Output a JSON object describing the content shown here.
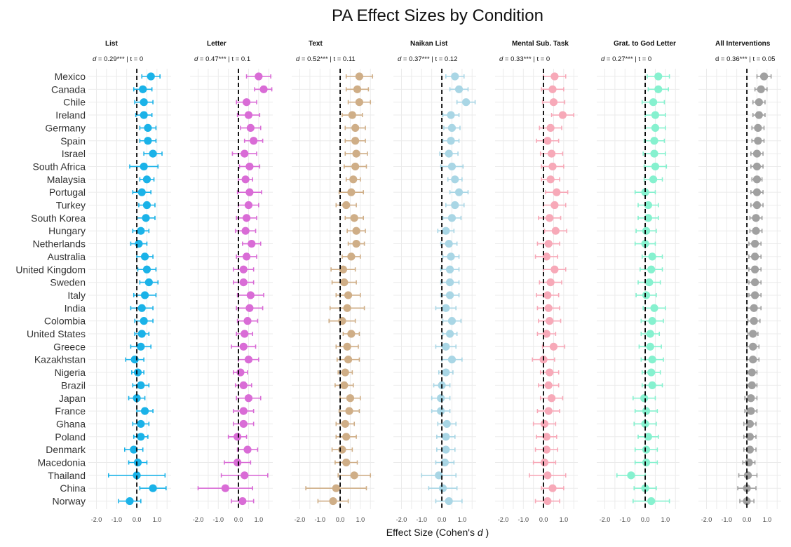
{
  "chart_data": {
    "type": "scatter",
    "title": "PA Effect Sizes by Condition",
    "xlabel_prefix": "Effect Size (Cohen's ",
    "xlabel_var": "d",
    "xlabel_suffix": " )",
    "xlim": [
      -2.4,
      1.7
    ],
    "xticks": [
      "-2.0",
      "-1.0",
      "0.0",
      "1.0"
    ],
    "xtick_values": [
      -2,
      -1,
      0,
      1
    ],
    "reference_line": 0,
    "countries": [
      "Mexico",
      "Canada",
      "Chile",
      "Ireland",
      "Germany",
      "Spain",
      "Israel",
      "South Africa",
      "Malaysia",
      "Portugal",
      "Turkey",
      "South Korea",
      "Hungary",
      "Netherlands",
      "Australia",
      "United Kingdom",
      "Sweden",
      "Italy",
      "India",
      "Colombia",
      "United States",
      "Greece",
      "Kazakhstan",
      "Nigeria",
      "Brazil",
      "Japan",
      "France",
      "Ghana",
      "Poland",
      "Denmark",
      "Macedonia",
      "Thailand",
      "China",
      "Norway"
    ],
    "panels": [
      {
        "name": "List",
        "stat_var": "d",
        "stat_rest": " = 0.29*** | t = 0",
        "color": "#1ab2e8",
        "values": [
          0.7,
          0.3,
          0.35,
          0.35,
          0.55,
          0.55,
          0.8,
          0.35,
          0.5,
          0.25,
          0.5,
          0.45,
          0.2,
          0.1,
          0.4,
          0.5,
          0.6,
          0.4,
          0.25,
          0.35,
          0.25,
          0.2,
          -0.1,
          0.05,
          0.2,
          0.0,
          0.4,
          0.2,
          0.2,
          -0.15,
          0.05,
          0.0,
          0.8,
          -0.35
        ],
        "err": [
          0.45,
          0.45,
          0.45,
          0.4,
          0.4,
          0.4,
          0.45,
          0.7,
          0.35,
          0.45,
          0.4,
          0.45,
          0.4,
          0.4,
          0.4,
          0.45,
          0.45,
          0.55,
          0.55,
          0.45,
          0.35,
          0.5,
          0.45,
          0.3,
          0.4,
          0.4,
          0.4,
          0.4,
          0.35,
          0.45,
          0.45,
          1.4,
          0.65,
          0.55
        ]
      },
      {
        "name": "Letter",
        "stat_var": "d",
        "stat_rest": " = 0.47*** | t = 0.1",
        "color": "#d96cd6",
        "values": [
          1.0,
          1.25,
          0.4,
          0.5,
          0.6,
          0.75,
          0.3,
          0.55,
          0.35,
          0.55,
          0.5,
          0.4,
          0.35,
          0.65,
          0.4,
          0.25,
          0.25,
          0.6,
          0.55,
          0.45,
          0.3,
          0.25,
          0.5,
          0.1,
          0.25,
          0.5,
          0.25,
          0.25,
          -0.05,
          0.45,
          -0.05,
          0.3,
          -0.65,
          0.2
        ],
        "err": [
          0.6,
          0.45,
          0.5,
          0.55,
          0.5,
          0.45,
          0.6,
          0.5,
          0.35,
          0.6,
          0.5,
          0.5,
          0.5,
          0.45,
          0.5,
          0.5,
          0.5,
          0.65,
          0.65,
          0.5,
          0.4,
          0.6,
          0.5,
          0.35,
          0.4,
          0.6,
          0.5,
          0.5,
          0.45,
          0.5,
          0.65,
          1.15,
          1.35,
          0.55
        ]
      },
      {
        "name": "Text",
        "stat_var": "d",
        "stat_rest": " = 0.52*** | t = 0.11",
        "color": "#cfae87",
        "values": [
          0.95,
          0.85,
          0.95,
          0.6,
          0.75,
          0.75,
          0.8,
          0.75,
          0.65,
          0.55,
          0.3,
          0.7,
          0.8,
          0.8,
          0.55,
          0.15,
          0.2,
          0.4,
          0.35,
          0.1,
          0.55,
          0.35,
          0.4,
          0.25,
          0.2,
          0.5,
          0.45,
          0.25,
          0.3,
          0.1,
          0.3,
          0.7,
          -0.2,
          -0.35
        ],
        "err": [
          0.65,
          0.55,
          0.55,
          0.5,
          0.5,
          0.5,
          0.55,
          0.55,
          0.35,
          0.6,
          0.5,
          0.45,
          0.45,
          0.4,
          0.45,
          0.6,
          0.6,
          0.6,
          0.85,
          0.65,
          0.4,
          0.55,
          0.55,
          0.35,
          0.45,
          0.5,
          0.5,
          0.45,
          0.5,
          0.5,
          0.55,
          0.8,
          1.5,
          0.75
        ]
      },
      {
        "name": "Naikan List",
        "stat_var": "d",
        "stat_rest": " = 0.37*** | t = 0.12",
        "color": "#a9d6e5",
        "values": [
          0.65,
          0.85,
          1.2,
          0.45,
          0.5,
          0.45,
          0.35,
          0.5,
          0.65,
          0.85,
          0.65,
          0.5,
          0.2,
          0.35,
          0.45,
          0.4,
          0.4,
          0.4,
          0.2,
          0.5,
          0.4,
          0.2,
          0.5,
          0.2,
          0.0,
          -0.05,
          -0.05,
          0.25,
          0.2,
          0.2,
          0.15,
          -0.15,
          0.05,
          0.35
        ],
        "err": [
          0.45,
          0.45,
          0.45,
          0.4,
          0.4,
          0.4,
          0.45,
          0.55,
          0.35,
          0.45,
          0.45,
          0.45,
          0.4,
          0.4,
          0.4,
          0.45,
          0.45,
          0.45,
          0.5,
          0.45,
          0.35,
          0.5,
          0.5,
          0.35,
          0.4,
          0.45,
          0.45,
          0.45,
          0.45,
          0.45,
          0.45,
          0.85,
          0.7,
          0.65
        ]
      },
      {
        "name": "Mental Sub. Task",
        "stat_var": "d",
        "stat_rest": " = 0.33*** | t = 0",
        "color": "#f7a9b8",
        "values": [
          0.55,
          0.45,
          0.5,
          0.95,
          0.35,
          0.2,
          0.4,
          0.45,
          0.35,
          0.65,
          0.55,
          0.3,
          0.6,
          0.25,
          0.15,
          0.55,
          0.35,
          0.2,
          0.25,
          0.3,
          0.15,
          0.5,
          0.0,
          0.3,
          0.25,
          0.4,
          0.25,
          0.05,
          0.15,
          0.15,
          0.05,
          0.2,
          0.45,
          0.2
        ],
        "err": [
          0.55,
          0.55,
          0.55,
          0.55,
          0.55,
          0.55,
          0.55,
          0.55,
          0.45,
          0.55,
          0.55,
          0.55,
          0.55,
          0.55,
          0.55,
          0.55,
          0.55,
          0.55,
          0.55,
          0.55,
          0.45,
          0.55,
          0.55,
          0.45,
          0.5,
          0.55,
          0.55,
          0.55,
          0.5,
          0.55,
          0.55,
          0.9,
          0.55,
          0.6
        ]
      },
      {
        "name": "Grat. to God Letter",
        "stat_var": "d",
        "stat_rest": " = 0.27*** | t = 0",
        "color": "#86f1cf",
        "values": [
          0.65,
          0.65,
          0.4,
          0.5,
          0.5,
          0.45,
          0.45,
          0.5,
          0.4,
          0.0,
          0.15,
          0.15,
          0.05,
          0.0,
          0.35,
          0.3,
          0.2,
          0.05,
          0.45,
          0.35,
          0.25,
          0.25,
          0.35,
          0.3,
          0.35,
          -0.05,
          0.05,
          0.0,
          0.15,
          0.05,
          0.05,
          -0.7,
          0.0,
          0.3
        ],
        "err": [
          0.55,
          0.5,
          0.55,
          0.5,
          0.5,
          0.5,
          0.55,
          0.55,
          0.45,
          0.5,
          0.5,
          0.5,
          0.5,
          0.5,
          0.5,
          0.55,
          0.55,
          0.5,
          0.55,
          0.55,
          0.45,
          0.55,
          0.55,
          0.45,
          0.5,
          0.55,
          0.55,
          0.55,
          0.5,
          0.55,
          0.55,
          0.7,
          0.55,
          0.9
        ]
      },
      {
        "name": "All Interventions",
        "stat_var": "",
        "stat_rest": "d = 0.36*** | t = 0.05",
        "color": "#a0a0a0",
        "values": [
          0.85,
          0.7,
          0.6,
          0.6,
          0.55,
          0.55,
          0.5,
          0.5,
          0.5,
          0.5,
          0.5,
          0.45,
          0.45,
          0.4,
          0.4,
          0.4,
          0.4,
          0.4,
          0.35,
          0.35,
          0.3,
          0.3,
          0.3,
          0.25,
          0.25,
          0.2,
          0.2,
          0.15,
          0.15,
          0.15,
          0.1,
          0.05,
          0.0,
          0.0
        ],
        "err": [
          0.35,
          0.3,
          0.3,
          0.3,
          0.3,
          0.3,
          0.3,
          0.3,
          0.25,
          0.3,
          0.3,
          0.3,
          0.3,
          0.3,
          0.3,
          0.3,
          0.3,
          0.3,
          0.35,
          0.3,
          0.25,
          0.3,
          0.3,
          0.25,
          0.25,
          0.3,
          0.3,
          0.3,
          0.3,
          0.3,
          0.3,
          0.45,
          0.45,
          0.35
        ]
      }
    ]
  }
}
